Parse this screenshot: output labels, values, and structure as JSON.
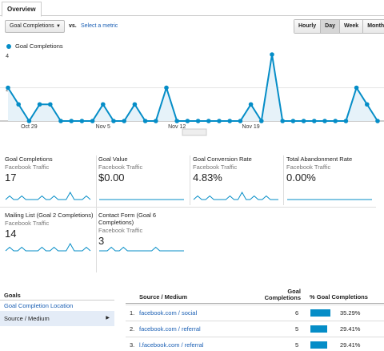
{
  "tab": {
    "label": "Overview"
  },
  "toolbar": {
    "metric": "Goal Completions",
    "vs": "vs.",
    "select_metric": "Select a metric",
    "ranges": [
      "Hourly",
      "Day",
      "Week",
      "Month"
    ],
    "active_range": "Day"
  },
  "chart_data": {
    "type": "area",
    "series": [
      {
        "name": "Goal Completions",
        "values": [
          2,
          1,
          0,
          1,
          1,
          0,
          0,
          0,
          0,
          1,
          0,
          0,
          1,
          0,
          0,
          2,
          0,
          0,
          0,
          0,
          0,
          0,
          0,
          1,
          0,
          4,
          0,
          0,
          0,
          0,
          0,
          0,
          0,
          2,
          1,
          0
        ]
      }
    ],
    "y_ticks": [
      "4",
      "2"
    ],
    "x_labels": [
      "Oct 29",
      "Nov 5",
      "Nov 12",
      "Nov 19"
    ],
    "ylim": [
      0,
      4
    ],
    "color": "#058dc7"
  },
  "tiles": [
    {
      "title": "Goal Completions",
      "sub": "Facebook Traffic",
      "value": "17",
      "spark": [
        0,
        1,
        0,
        0,
        1,
        0,
        0,
        0,
        0,
        1,
        0,
        0,
        1,
        0,
        0,
        0,
        2,
        0,
        0,
        0,
        1,
        0
      ]
    },
    {
      "title": "Goal Value",
      "sub": "Facebook Traffic",
      "value": "$0.00",
      "spark": []
    },
    {
      "title": "Goal Conversion Rate",
      "sub": "Facebook Traffic",
      "value": "4.83%",
      "spark": [
        0,
        1,
        0,
        0,
        1,
        0,
        0,
        0,
        0,
        1,
        0,
        0,
        2,
        0,
        0,
        1,
        0,
        0,
        1,
        0,
        0,
        0
      ]
    },
    {
      "title": "Total Abandonment Rate",
      "sub": "Facebook Traffic",
      "value": "0.00%",
      "spark": []
    },
    {
      "title": "Mailing List (Goal 2 Completions)",
      "sub": "Facebook Traffic",
      "value": "14",
      "spark": [
        0,
        1,
        0,
        0,
        1,
        0,
        0,
        0,
        0,
        1,
        0,
        0,
        1,
        0,
        0,
        0,
        2,
        0,
        0,
        0,
        1,
        0
      ]
    },
    {
      "title": "Contact Form (Goal 6 Completions)",
      "sub": "Facebook Traffic",
      "value": "3",
      "spark": [
        0,
        0,
        0,
        1,
        0,
        0,
        1,
        0,
        0,
        0,
        0,
        0,
        0,
        0,
        1,
        0,
        0,
        0,
        0,
        0,
        0,
        0
      ]
    }
  ],
  "goals": {
    "title": "Goals",
    "link": "Goal Completion Location",
    "selected": "Source / Medium"
  },
  "table": {
    "headers": {
      "source": "Source / Medium",
      "completions": "Goal Completions",
      "pct": "% Goal Completions"
    },
    "rows": [
      {
        "num": "1.",
        "source": "facebook.com / social",
        "count": "6",
        "pct": "35.29%",
        "share": 0.3529
      },
      {
        "num": "2.",
        "source": "facebook.com / referral",
        "count": "5",
        "pct": "29.41%",
        "share": 0.2941
      },
      {
        "num": "3.",
        "source": "l.facebook.com / referral",
        "count": "5",
        "pct": "29.41%",
        "share": 0.2941
      }
    ]
  }
}
